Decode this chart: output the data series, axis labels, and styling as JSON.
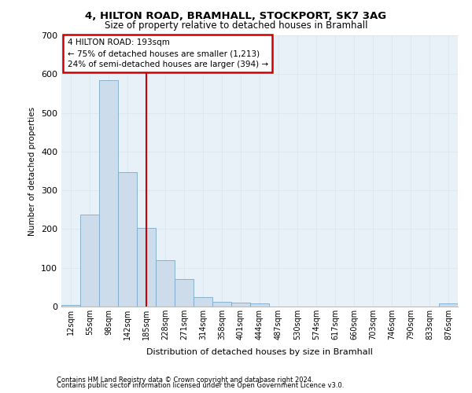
{
  "title1": "4, HILTON ROAD, BRAMHALL, STOCKPORT, SK7 3AG",
  "title2": "Size of property relative to detached houses in Bramhall",
  "xlabel": "Distribution of detached houses by size in Bramhall",
  "ylabel": "Number of detached properties",
  "footnote1": "Contains HM Land Registry data © Crown copyright and database right 2024.",
  "footnote2": "Contains public sector information licensed under the Open Government Licence v3.0.",
  "bin_labels": [
    "12sqm",
    "55sqm",
    "98sqm",
    "142sqm",
    "185sqm",
    "228sqm",
    "271sqm",
    "314sqm",
    "358sqm",
    "401sqm",
    "444sqm",
    "487sqm",
    "530sqm",
    "574sqm",
    "617sqm",
    "660sqm",
    "703sqm",
    "746sqm",
    "790sqm",
    "833sqm",
    "876sqm"
  ],
  "bar_values": [
    5,
    237,
    585,
    347,
    203,
    119,
    71,
    25,
    13,
    10,
    8,
    0,
    0,
    0,
    0,
    0,
    0,
    0,
    0,
    0,
    8
  ],
  "bar_color": "#cddceb",
  "bar_edge_color": "#7aaac8",
  "grid_color": "#dce8f0",
  "bg_color": "#e8f0f8",
  "annotation_text": "4 HILTON ROAD: 193sqm\n← 75% of detached houses are smaller (1,213)\n24% of semi-detached houses are larger (394) →",
  "annotation_box_color": "#ffffff",
  "annotation_box_edge": "#cc0000",
  "red_line_color": "#cc0000",
  "red_line_x": 4,
  "ylim": [
    0,
    700
  ],
  "yticks": [
    0,
    100,
    200,
    300,
    400,
    500,
    600,
    700
  ]
}
